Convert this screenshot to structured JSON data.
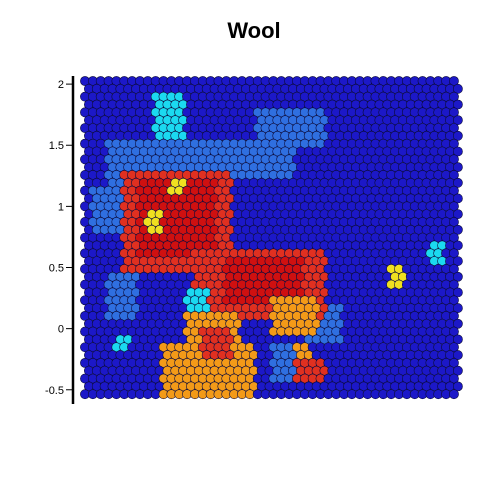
{
  "chart_data": {
    "type": "heatmap",
    "title": "Wool",
    "xlabel": "",
    "ylabel": "",
    "grid": false,
    "legend": "none",
    "cols": 48,
    "rows": 41,
    "ylim": [
      -0.6,
      2.05
    ],
    "y_ticks": [
      {
        "value": 2,
        "label": "2"
      },
      {
        "value": 1.5,
        "label": "1.5"
      },
      {
        "value": 1,
        "label": "1"
      },
      {
        "value": 0.5,
        "label": "0.5"
      },
      {
        "value": 0,
        "label": "0"
      },
      {
        "value": -0.5,
        "label": "-0.5"
      }
    ],
    "levels": {
      "0": "#1c18c8",
      "1": "#2f6fe0",
      "2": "#1bd9f0",
      "3": "#f0e020",
      "4": "#f39a18",
      "5": "#e03020",
      "6": "#cf1010"
    },
    "regions": [
      {
        "level": 1,
        "x": [
          3,
          13
        ],
        "y": [
          8,
          13
        ]
      },
      {
        "level": 1,
        "x": [
          1,
          7
        ],
        "y": [
          14,
          19
        ]
      },
      {
        "level": 2,
        "x": [
          9,
          12
        ],
        "y": [
          2,
          8
        ]
      },
      {
        "level": 1,
        "x": [
          22,
          30
        ],
        "y": [
          4,
          8
        ]
      },
      {
        "level": 1,
        "x": [
          8,
          26
        ],
        "y": [
          8,
          12
        ]
      },
      {
        "level": 1,
        "x": [
          28,
          32
        ],
        "y": [
          29,
          33
        ]
      },
      {
        "level": 1,
        "x": [
          3,
          6
        ],
        "y": [
          25,
          30
        ]
      },
      {
        "level": 2,
        "x": [
          4,
          5
        ],
        "y": [
          33,
          34
        ]
      },
      {
        "level": 1,
        "x": [
          24,
          27
        ],
        "y": [
          34,
          38
        ]
      },
      {
        "level": 5,
        "x": [
          5,
          18
        ],
        "y": [
          12,
          24
        ]
      },
      {
        "level": 6,
        "x": [
          7,
          16
        ],
        "y": [
          13,
          22
        ]
      },
      {
        "level": 5,
        "x": [
          14,
          30
        ],
        "y": [
          22,
          30
        ]
      },
      {
        "level": 6,
        "x": [
          18,
          27
        ],
        "y": [
          23,
          28
        ]
      },
      {
        "level": 4,
        "x": [
          24,
          29
        ],
        "y": [
          28,
          32
        ]
      },
      {
        "level": 4,
        "x": [
          13,
          19
        ],
        "y": [
          30,
          40
        ]
      },
      {
        "level": 4,
        "x": [
          10,
          21
        ],
        "y": [
          34,
          40
        ]
      },
      {
        "level": 5,
        "x": [
          15,
          18
        ],
        "y": [
          32,
          35
        ]
      },
      {
        "level": 5,
        "x": [
          27,
          30
        ],
        "y": [
          36,
          38
        ]
      },
      {
        "level": 4,
        "x": [
          27,
          28
        ],
        "y": [
          34,
          35
        ]
      },
      {
        "level": 3,
        "x": [
          8,
          9
        ],
        "y": [
          17,
          19
        ]
      },
      {
        "level": 3,
        "x": [
          11,
          12
        ],
        "y": [
          13,
          14
        ]
      },
      {
        "level": 3,
        "x": [
          39,
          40
        ],
        "y": [
          24,
          26
        ]
      },
      {
        "level": 2,
        "x": [
          44,
          45
        ],
        "y": [
          21,
          23
        ]
      },
      {
        "level": 2,
        "x": [
          13,
          15
        ],
        "y": [
          27,
          29
        ]
      }
    ]
  }
}
